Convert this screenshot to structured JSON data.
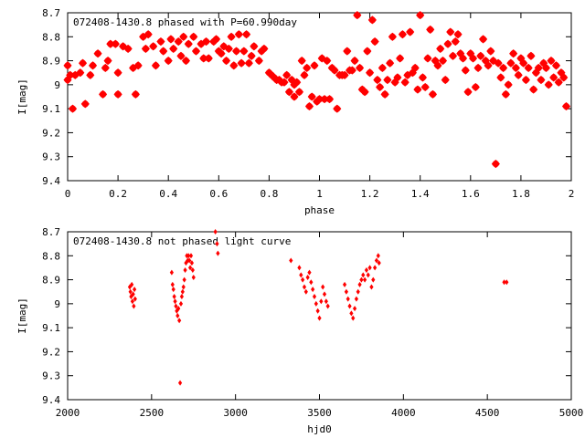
{
  "colors": {
    "point": "#ff0000",
    "axis": "#000000",
    "background": "#ffffff"
  },
  "chart_data": [
    {
      "type": "scatter",
      "title": "072408-1430.8 phased with P=60.990day",
      "xlabel": "phase",
      "ylabel": "I[mag]",
      "xlim": [
        0,
        2
      ],
      "ylim": [
        8.7,
        9.4
      ],
      "y_inverted": true,
      "grid": false,
      "marker": "star",
      "xticks": [
        0,
        0.2,
        0.4,
        0.6,
        0.8,
        1,
        1.2,
        1.4,
        1.6,
        1.8,
        2
      ],
      "xtick_labels": [
        "0",
        "0.2",
        "0.4",
        "0.6",
        "0.8",
        "1",
        "1.2",
        "1.4",
        "1.6",
        "1.8",
        "2"
      ],
      "yticks": [
        8.7,
        8.8,
        8.9,
        9.0,
        9.1,
        9.2,
        9.3,
        9.4
      ],
      "ytick_labels": [
        "8.7",
        "8.8",
        "8.9",
        "9",
        "9.1",
        "9.2",
        "9.3",
        "9.4"
      ],
      "points": [
        [
          0.0,
          8.92
        ],
        [
          0.0,
          8.98
        ],
        [
          0.01,
          8.96
        ],
        [
          0.02,
          9.1
        ],
        [
          0.03,
          8.96
        ],
        [
          0.05,
          8.95
        ],
        [
          0.06,
          8.91
        ],
        [
          0.07,
          9.08
        ],
        [
          0.09,
          8.96
        ],
        [
          0.1,
          8.92
        ],
        [
          0.12,
          8.87
        ],
        [
          0.14,
          9.04
        ],
        [
          0.15,
          8.93
        ],
        [
          0.16,
          8.9
        ],
        [
          0.17,
          8.83
        ],
        [
          0.19,
          8.83
        ],
        [
          0.2,
          9.04
        ],
        [
          0.2,
          8.95
        ],
        [
          0.22,
          8.84
        ],
        [
          0.24,
          8.85
        ],
        [
          0.26,
          8.93
        ],
        [
          0.27,
          9.04
        ],
        [
          0.28,
          8.92
        ],
        [
          0.3,
          8.8
        ],
        [
          0.31,
          8.85
        ],
        [
          0.32,
          8.79
        ],
        [
          0.34,
          8.84
        ],
        [
          0.35,
          8.92
        ],
        [
          0.37,
          8.82
        ],
        [
          0.38,
          8.86
        ],
        [
          0.4,
          8.9
        ],
        [
          0.41,
          8.81
        ],
        [
          0.42,
          8.85
        ],
        [
          0.44,
          8.82
        ],
        [
          0.45,
          8.88
        ],
        [
          0.46,
          8.8
        ],
        [
          0.47,
          8.9
        ],
        [
          0.48,
          8.83
        ],
        [
          0.5,
          8.8
        ],
        [
          0.51,
          8.86
        ],
        [
          0.53,
          8.83
        ],
        [
          0.54,
          8.89
        ],
        [
          0.55,
          8.82
        ],
        [
          0.56,
          8.89
        ],
        [
          0.58,
          8.82
        ],
        [
          0.59,
          8.81
        ],
        [
          0.6,
          8.86
        ],
        [
          0.61,
          8.87
        ],
        [
          0.62,
          8.84
        ],
        [
          0.63,
          8.9
        ],
        [
          0.64,
          8.85
        ],
        [
          0.65,
          8.8
        ],
        [
          0.66,
          8.92
        ],
        [
          0.67,
          8.86
        ],
        [
          0.68,
          8.79
        ],
        [
          0.69,
          8.91
        ],
        [
          0.7,
          8.86
        ],
        [
          0.71,
          8.79
        ],
        [
          0.72,
          8.91
        ],
        [
          0.73,
          8.88
        ],
        [
          0.74,
          8.84
        ],
        [
          0.76,
          8.9
        ],
        [
          0.77,
          8.86
        ],
        [
          0.78,
          8.85
        ],
        [
          0.8,
          8.95
        ],
        [
          0.81,
          8.96
        ],
        [
          0.82,
          8.97
        ],
        [
          0.83,
          8.98
        ],
        [
          0.84,
          8.98
        ],
        [
          0.85,
          8.99
        ],
        [
          0.86,
          8.99
        ],
        [
          0.87,
          8.96
        ],
        [
          0.88,
          9.03
        ],
        [
          0.89,
          8.98
        ],
        [
          0.9,
          9.0
        ],
        [
          0.9,
          9.05
        ],
        [
          0.91,
          8.99
        ],
        [
          0.92,
          9.03
        ],
        [
          0.93,
          8.9
        ],
        [
          0.94,
          8.96
        ],
        [
          0.95,
          8.93
        ],
        [
          0.96,
          9.09
        ],
        [
          0.97,
          9.05
        ],
        [
          0.98,
          8.92
        ],
        [
          0.99,
          9.07
        ],
        [
          1.0,
          9.06
        ],
        [
          1.01,
          8.89
        ],
        [
          1.02,
          9.06
        ],
        [
          1.03,
          8.9
        ],
        [
          1.04,
          9.06
        ],
        [
          1.05,
          8.93
        ],
        [
          1.06,
          8.94
        ],
        [
          1.07,
          9.1
        ],
        [
          1.08,
          8.96
        ],
        [
          1.09,
          8.96
        ],
        [
          1.1,
          8.96
        ],
        [
          1.11,
          8.86
        ],
        [
          1.12,
          8.94
        ],
        [
          1.13,
          8.94
        ],
        [
          1.14,
          8.9
        ],
        [
          1.15,
          8.71
        ],
        [
          1.16,
          8.93
        ],
        [
          1.17,
          9.02
        ],
        [
          1.18,
          9.03
        ],
        [
          1.19,
          8.86
        ],
        [
          1.2,
          8.95
        ],
        [
          1.21,
          8.73
        ],
        [
          1.22,
          8.82
        ],
        [
          1.23,
          8.98
        ],
        [
          1.24,
          9.01
        ],
        [
          1.25,
          8.93
        ],
        [
          1.26,
          9.04
        ],
        [
          1.27,
          8.98
        ],
        [
          1.28,
          8.91
        ],
        [
          1.29,
          8.8
        ],
        [
          1.3,
          8.99
        ],
        [
          1.31,
          8.97
        ],
        [
          1.32,
          8.89
        ],
        [
          1.33,
          8.79
        ],
        [
          1.34,
          8.99
        ],
        [
          1.35,
          8.96
        ],
        [
          1.36,
          8.78
        ],
        [
          1.37,
          8.95
        ],
        [
          1.38,
          8.93
        ],
        [
          1.39,
          9.02
        ],
        [
          1.4,
          8.71
        ],
        [
          1.41,
          8.97
        ],
        [
          1.42,
          9.01
        ],
        [
          1.43,
          8.89
        ],
        [
          1.44,
          8.77
        ],
        [
          1.45,
          9.04
        ],
        [
          1.46,
          8.9
        ],
        [
          1.47,
          8.92
        ],
        [
          1.48,
          8.85
        ],
        [
          1.49,
          8.9
        ],
        [
          1.5,
          8.98
        ],
        [
          1.51,
          8.83
        ],
        [
          1.52,
          8.78
        ],
        [
          1.53,
          8.88
        ],
        [
          1.54,
          8.82
        ],
        [
          1.55,
          8.79
        ],
        [
          1.56,
          8.87
        ],
        [
          1.57,
          8.89
        ],
        [
          1.58,
          8.94
        ],
        [
          1.59,
          9.03
        ],
        [
          1.6,
          8.87
        ],
        [
          1.61,
          8.89
        ],
        [
          1.62,
          9.01
        ],
        [
          1.63,
          8.93
        ],
        [
          1.64,
          8.88
        ],
        [
          1.65,
          8.81
        ],
        [
          1.66,
          8.9
        ],
        [
          1.67,
          8.92
        ],
        [
          1.68,
          8.86
        ],
        [
          1.69,
          8.9
        ],
        [
          1.7,
          9.33
        ],
        [
          1.71,
          8.91
        ],
        [
          1.72,
          8.97
        ],
        [
          1.73,
          8.93
        ],
        [
          1.74,
          9.04
        ],
        [
          1.75,
          9.0
        ],
        [
          1.76,
          8.91
        ],
        [
          1.77,
          8.87
        ],
        [
          1.78,
          8.93
        ],
        [
          1.79,
          8.96
        ],
        [
          1.8,
          8.89
        ],
        [
          1.81,
          8.91
        ],
        [
          1.82,
          8.98
        ],
        [
          1.83,
          8.93
        ],
        [
          1.84,
          8.88
        ],
        [
          1.85,
          9.02
        ],
        [
          1.86,
          8.95
        ],
        [
          1.87,
          8.93
        ],
        [
          1.88,
          8.98
        ],
        [
          1.89,
          8.91
        ],
        [
          1.9,
          8.93
        ],
        [
          1.91,
          9.0
        ],
        [
          1.92,
          8.9
        ],
        [
          1.93,
          8.97
        ],
        [
          1.94,
          8.92
        ],
        [
          1.95,
          8.99
        ],
        [
          1.96,
          8.95
        ],
        [
          1.97,
          8.97
        ],
        [
          1.98,
          9.09
        ]
      ]
    },
    {
      "type": "scatter",
      "title": "072408-1430.8 not phased light curve",
      "xlabel": "hjd0",
      "ylabel": "I[mag]",
      "xlim": [
        2000,
        5000
      ],
      "ylim": [
        8.7,
        9.4
      ],
      "y_inverted": true,
      "grid": false,
      "marker": "diamond",
      "xticks": [
        2000,
        2500,
        3000,
        3500,
        4000,
        4500,
        5000
      ],
      "xtick_labels": [
        "2000",
        "2500",
        "3000",
        "3500",
        "4000",
        "4500",
        "5000"
      ],
      "yticks": [
        8.7,
        8.8,
        8.9,
        9.0,
        9.1,
        9.2,
        9.3,
        9.4
      ],
      "ytick_labels": [
        "8.7",
        "8.8",
        "8.9",
        "9",
        "9.1",
        "9.2",
        "9.3",
        "9.4"
      ],
      "points": [
        [
          2370,
          8.93
        ],
        [
          2374,
          8.95
        ],
        [
          2378,
          8.97
        ],
        [
          2382,
          8.92
        ],
        [
          2386,
          8.99
        ],
        [
          2390,
          8.96
        ],
        [
          2394,
          9.01
        ],
        [
          2398,
          8.94
        ],
        [
          2402,
          8.98
        ],
        [
          2620,
          8.87
        ],
        [
          2625,
          8.92
        ],
        [
          2630,
          8.94
        ],
        [
          2635,
          8.97
        ],
        [
          2640,
          8.99
        ],
        [
          2645,
          9.01
        ],
        [
          2650,
          9.03
        ],
        [
          2655,
          9.05
        ],
        [
          2660,
          9.02
        ],
        [
          2665,
          9.07
        ],
        [
          2670,
          9.33
        ],
        [
          2675,
          9.0
        ],
        [
          2680,
          8.97
        ],
        [
          2685,
          8.95
        ],
        [
          2690,
          8.93
        ],
        [
          2695,
          8.9
        ],
        [
          2700,
          8.86
        ],
        [
          2705,
          8.83
        ],
        [
          2710,
          8.8
        ],
        [
          2715,
          8.82
        ],
        [
          2720,
          8.8
        ],
        [
          2725,
          8.82
        ],
        [
          2730,
          8.85
        ],
        [
          2735,
          8.8
        ],
        [
          2740,
          8.83
        ],
        [
          2745,
          8.86
        ],
        [
          2750,
          8.89
        ],
        [
          2880,
          8.7
        ],
        [
          2890,
          8.75
        ],
        [
          2895,
          8.79
        ],
        [
          3330,
          8.82
        ],
        [
          3380,
          8.85
        ],
        [
          3390,
          8.88
        ],
        [
          3400,
          8.9
        ],
        [
          3410,
          8.93
        ],
        [
          3420,
          8.95
        ],
        [
          3430,
          8.89
        ],
        [
          3440,
          8.87
        ],
        [
          3450,
          8.91
        ],
        [
          3460,
          8.94
        ],
        [
          3470,
          8.97
        ],
        [
          3480,
          9.0
        ],
        [
          3490,
          9.03
        ],
        [
          3500,
          9.06
        ],
        [
          3510,
          8.99
        ],
        [
          3520,
          8.93
        ],
        [
          3530,
          8.96
        ],
        [
          3540,
          8.99
        ],
        [
          3550,
          9.01
        ],
        [
          3650,
          8.92
        ],
        [
          3660,
          8.95
        ],
        [
          3670,
          8.98
        ],
        [
          3680,
          9.01
        ],
        [
          3690,
          9.04
        ],
        [
          3700,
          9.06
        ],
        [
          3710,
          9.02
        ],
        [
          3720,
          8.98
        ],
        [
          3730,
          8.95
        ],
        [
          3740,
          8.92
        ],
        [
          3750,
          8.9
        ],
        [
          3760,
          8.88
        ],
        [
          3770,
          8.9
        ],
        [
          3780,
          8.86
        ],
        [
          3790,
          8.88
        ],
        [
          3800,
          8.85
        ],
        [
          3810,
          8.93
        ],
        [
          3820,
          8.9
        ],
        [
          3830,
          8.85
        ],
        [
          3840,
          8.82
        ],
        [
          3850,
          8.8
        ],
        [
          3855,
          8.83
        ],
        [
          4600,
          8.91
        ],
        [
          4615,
          8.91
        ]
      ]
    }
  ]
}
